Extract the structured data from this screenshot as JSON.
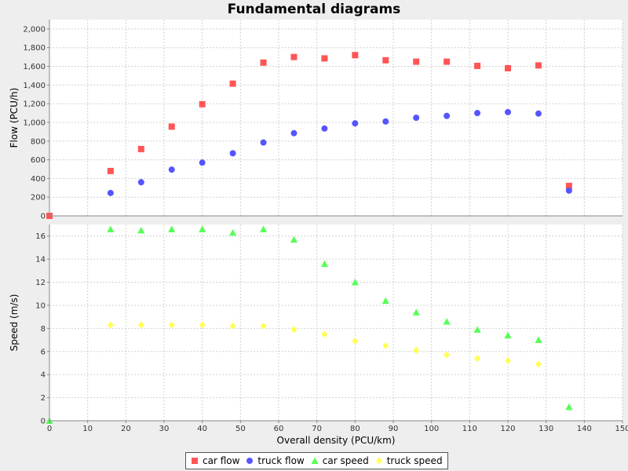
{
  "title": "Fundamental diagrams",
  "chart_data": [
    {
      "type": "scatter",
      "ylabel": "Flow (PCU/h)",
      "ylim": [
        0,
        2100
      ],
      "yticks": [
        "0",
        "200",
        "400",
        "600",
        "800",
        "1,000",
        "1,200",
        "1,400",
        "1,600",
        "1,800",
        "2,000"
      ],
      "ytick_values": [
        0,
        200,
        400,
        600,
        800,
        1000,
        1200,
        1400,
        1600,
        1800,
        2000
      ],
      "grid": true,
      "series": [
        {
          "name": "car flow",
          "color": "#ff5555",
          "marker": "square",
          "x": [
            0,
            16,
            24,
            32,
            40,
            48,
            56,
            64,
            72,
            80,
            88,
            96,
            104,
            112,
            120,
            128,
            136
          ],
          "y": [
            0,
            480,
            715,
            955,
            1195,
            1415,
            1640,
            1700,
            1685,
            1720,
            1665,
            1650,
            1650,
            1605,
            1580,
            1610,
            320
          ]
        },
        {
          "name": "truck flow",
          "color": "#5555ff",
          "marker": "circle",
          "x": [
            16,
            24,
            32,
            40,
            48,
            56,
            64,
            72,
            80,
            88,
            96,
            104,
            112,
            120,
            128,
            136
          ],
          "y": [
            245,
            360,
            495,
            570,
            670,
            785,
            885,
            935,
            990,
            1010,
            1050,
            1070,
            1100,
            1110,
            1095,
            270
          ]
        }
      ]
    },
    {
      "type": "scatter",
      "xlabel": "Overall density (PCU/km)",
      "ylabel": "Speed (m/s)",
      "xlim": [
        0,
        150
      ],
      "ylim": [
        0,
        17
      ],
      "xticks": [
        "0",
        "10",
        "20",
        "30",
        "40",
        "50",
        "60",
        "70",
        "80",
        "90",
        "100",
        "110",
        "120",
        "130",
        "140",
        "150"
      ],
      "xtick_values": [
        0,
        10,
        20,
        30,
        40,
        50,
        60,
        70,
        80,
        90,
        100,
        110,
        120,
        130,
        140,
        150
      ],
      "yticks": [
        "0",
        "2",
        "4",
        "6",
        "8",
        "10",
        "12",
        "14",
        "16"
      ],
      "ytick_values": [
        0,
        2,
        4,
        6,
        8,
        10,
        12,
        14,
        16
      ],
      "grid": true,
      "series": [
        {
          "name": "car speed",
          "color": "#55ff55",
          "marker": "triangle",
          "x": [
            0,
            16,
            24,
            32,
            40,
            48,
            56,
            64,
            72,
            80,
            88,
            96,
            104,
            112,
            120,
            128,
            136
          ],
          "y": [
            0,
            16.6,
            16.5,
            16.6,
            16.6,
            16.3,
            16.6,
            15.7,
            13.6,
            12.0,
            10.4,
            9.4,
            8.6,
            7.9,
            7.4,
            7.0,
            1.2
          ]
        },
        {
          "name": "truck speed",
          "color": "#ffff55",
          "marker": "diamond",
          "x": [
            16,
            24,
            32,
            40,
            48,
            56,
            64,
            72,
            80,
            88,
            96,
            104,
            112,
            120,
            128
          ],
          "y": [
            8.3,
            8.3,
            8.3,
            8.3,
            8.2,
            8.2,
            7.9,
            7.5,
            6.9,
            6.5,
            6.1,
            5.7,
            5.4,
            5.2,
            4.9
          ]
        }
      ]
    }
  ],
  "legend": [
    {
      "label": "car flow",
      "color": "#ff5555",
      "marker": "square"
    },
    {
      "label": "truck flow",
      "color": "#5555ff",
      "marker": "circle"
    },
    {
      "label": "car speed",
      "color": "#55ff55",
      "marker": "triangle"
    },
    {
      "label": "truck speed",
      "color": "#ffff55",
      "marker": "diamond"
    }
  ]
}
